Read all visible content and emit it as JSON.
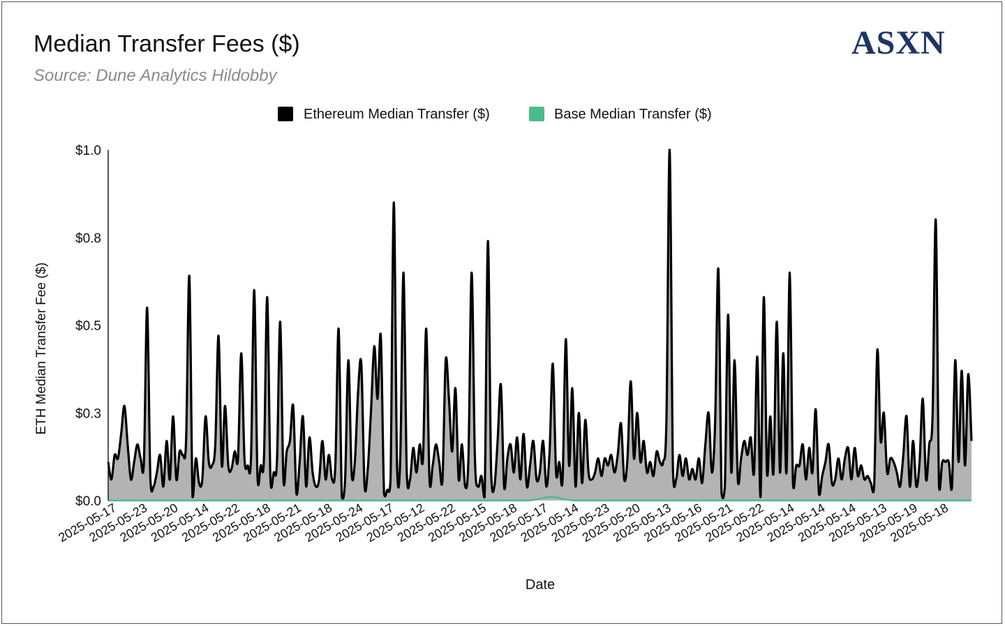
{
  "header": {
    "title": "Median Transfer Fees ($)",
    "subtitle": "Source: Dune Analytics Hildobby",
    "logo": "ASXN"
  },
  "chart_data": {
    "type": "area",
    "xlabel": "Date",
    "ylabel": "ETH Median Transfer Fee ($)",
    "ylim": [
      0,
      1.0
    ],
    "y_ticks": [
      "$0.0",
      "$0.3",
      "$0.5",
      "$0.8",
      "$1.0"
    ],
    "y_tick_values": [
      0,
      0.25,
      0.5,
      0.75,
      1.0
    ],
    "x_tick_labels": [
      "2025-05-17",
      "2025-05-23",
      "2025-05-20",
      "2025-05-14",
      "2025-05-22",
      "2025-05-18",
      "2025-05-21",
      "2025-05-18",
      "2025-05-24",
      "2025-05-17",
      "2025-05-12",
      "2025-05-22",
      "2025-05-15",
      "2025-05-18",
      "2025-05-17",
      "2025-05-14",
      "2025-05-23",
      "2025-05-20",
      "2025-05-13",
      "2025-05-16",
      "2025-05-21",
      "2025-05-22",
      "2025-05-14",
      "2025-05-14",
      "2025-05-14",
      "2025-05-13",
      "2025-05-19",
      "2025-05-18"
    ],
    "grid": false,
    "legend_position": "top-center",
    "series": [
      {
        "name": "Ethereum Median Transfer ($)",
        "color": "#000000",
        "fill": "#b3b3b3",
        "values": [
          0.11,
          0.06,
          0.13,
          0.12,
          0.19,
          0.27,
          0.16,
          0.06,
          0.11,
          0.16,
          0.12,
          0.11,
          0.55,
          0.06,
          0.04,
          0.08,
          0.13,
          0.04,
          0.17,
          0.06,
          0.24,
          0.06,
          0.14,
          0.13,
          0.17,
          0.64,
          0.01,
          0.12,
          0.05,
          0.06,
          0.24,
          0.11,
          0.1,
          0.16,
          0.47,
          0.1,
          0.27,
          0.1,
          0.09,
          0.14,
          0.12,
          0.42,
          0.12,
          0.1,
          0.12,
          0.6,
          0.07,
          0.1,
          0.12,
          0.58,
          0.06,
          0.08,
          0.11,
          0.51,
          0.06,
          0.14,
          0.17,
          0.27,
          0.02,
          0.11,
          0.24,
          0.04,
          0.18,
          0.08,
          0.04,
          0.06,
          0.17,
          0.06,
          0.13,
          0.06,
          0.1,
          0.49,
          0.01,
          0.06,
          0.4,
          0.08,
          0.11,
          0.31,
          0.39,
          0.04,
          0.09,
          0.26,
          0.44,
          0.29,
          0.47,
          0.02,
          0.03,
          0.06,
          0.85,
          0.1,
          0.12,
          0.65,
          0.08,
          0.06,
          0.15,
          0.08,
          0.16,
          0.12,
          0.49,
          0.06,
          0.1,
          0.16,
          0.11,
          0.06,
          0.4,
          0.29,
          0.14,
          0.32,
          0.06,
          0.16,
          0.04,
          0.12,
          0.65,
          0.12,
          0.04,
          0.07,
          0.01,
          0.74,
          0.08,
          0.04,
          0.17,
          0.33,
          0.04,
          0.12,
          0.16,
          0.08,
          0.18,
          0.06,
          0.19,
          0.04,
          0.1,
          0.17,
          0.06,
          0.08,
          0.17,
          0.04,
          0.14,
          0.39,
          0.08,
          0.11,
          0.06,
          0.46,
          0.1,
          0.32,
          0.04,
          0.25,
          0.05,
          0.23,
          0.08,
          0.06,
          0.08,
          0.12,
          0.07,
          0.12,
          0.1,
          0.13,
          0.08,
          0.13,
          0.22,
          0.06,
          0.12,
          0.34,
          0.12,
          0.25,
          0.11,
          0.17,
          0.08,
          0.11,
          0.07,
          0.14,
          0.11,
          0.11,
          0.23,
          1.0,
          0.09,
          0.06,
          0.13,
          0.07,
          0.12,
          0.06,
          0.09,
          0.06,
          0.12,
          0.05,
          0.16,
          0.25,
          0.08,
          0.22,
          0.66,
          0.02,
          0.04,
          0.53,
          0.08,
          0.4,
          0.06,
          0.12,
          0.17,
          0.13,
          0.18,
          0.08,
          0.41,
          0.01,
          0.58,
          0.08,
          0.24,
          0.08,
          0.51,
          0.08,
          0.42,
          0.08,
          0.65,
          0.05,
          0.1,
          0.1,
          0.16,
          0.06,
          0.15,
          0.08,
          0.26,
          0.02,
          0.07,
          0.11,
          0.16,
          0.05,
          0.06,
          0.12,
          0.06,
          0.12,
          0.15,
          0.06,
          0.15,
          0.07,
          0.1,
          0.06,
          0.07,
          0.05,
          0.04,
          0.43,
          0.17,
          0.25,
          0.08,
          0.12,
          0.11,
          0.08,
          0.04,
          0.13,
          0.24,
          0.04,
          0.17,
          0.04,
          0.11,
          0.29,
          0.06,
          0.16,
          0.24,
          0.8,
          0.04,
          0.11,
          0.11,
          0.11,
          0.04,
          0.4,
          0.11,
          0.37,
          0.1,
          0.36,
          0.17
        ]
      },
      {
        "name": "Base Median Transfer ($)",
        "color": "#4cbb8a",
        "values": [
          0.0,
          0.0,
          0.0,
          0.0,
          0.0,
          0.0,
          0.0,
          0.0,
          0.0,
          0.0,
          0.0,
          0.0,
          0.0,
          0.0,
          0.0,
          0.0,
          0.0,
          0.0,
          0.0,
          0.0,
          0.01,
          0.0,
          0.0,
          0.0,
          0.0,
          0.0,
          0.0,
          0.0,
          0.0,
          0.0,
          0.0,
          0.0,
          0.0,
          0.0,
          0.0,
          0.0,
          0.0,
          0.0,
          0.0,
          0.0
        ]
      }
    ]
  }
}
